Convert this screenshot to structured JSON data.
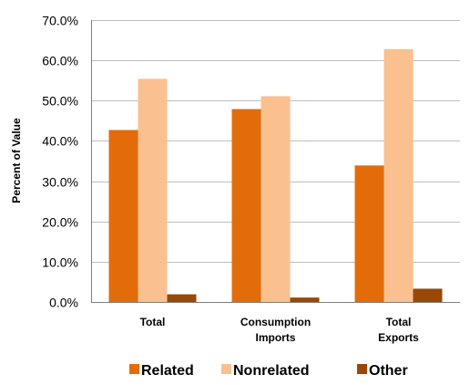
{
  "chart_data": {
    "type": "bar",
    "title": "",
    "xlabel": "",
    "ylabel": "Percent   of   Value",
    "categories": [
      [
        "Total"
      ],
      [
        "Consumption",
        "Imports"
      ],
      [
        "Total",
        "Exports"
      ]
    ],
    "series": [
      {
        "name": "Related",
        "color": "#E36C0A",
        "values": [
          42.7,
          47.9,
          33.9
        ]
      },
      {
        "name": "Nonrelated",
        "color": "#FAC090",
        "values": [
          55.4,
          51.1,
          62.8
        ]
      },
      {
        "name": "Other",
        "color": "#984807",
        "values": [
          1.9,
          1.1,
          3.3
        ]
      }
    ],
    "ylim": [
      0,
      70
    ],
    "yticks": [
      "0.0%",
      "10.0%",
      "20.0%",
      "30.0%",
      "40.0%",
      "50.0%",
      "60.0%",
      "70.0%"
    ],
    "grid": true,
    "legend_position": "bottom"
  }
}
